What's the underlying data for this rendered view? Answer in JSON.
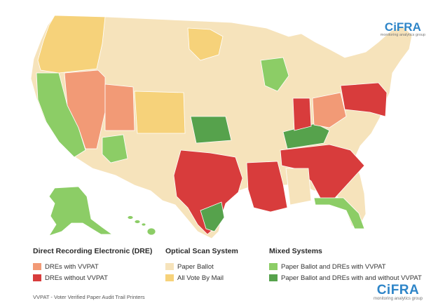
{
  "colors": {
    "dre_with_vvpat": "#f29a76",
    "dre_without_vvpat": "#d83c3c",
    "paper_ballot": "#f6e3bb",
    "vote_by_mail": "#f6d27a",
    "mixed_with_vvpat": "#8ccd66",
    "mixed_with_and_without": "#56a24c",
    "border": "#ffffff"
  },
  "legend": {
    "dre": {
      "title": "Direct Recording Electronic (DRE)",
      "items": [
        {
          "label": "DREs with VVPAT",
          "color_key": "dre_with_vvpat"
        },
        {
          "label": "DREs without VVPAT",
          "color_key": "dre_without_vvpat"
        }
      ]
    },
    "optical": {
      "title": "Optical Scan System",
      "items": [
        {
          "label": "Paper Ballot",
          "color_key": "paper_ballot"
        },
        {
          "label": "All Vote By Mail",
          "color_key": "vote_by_mail"
        }
      ]
    },
    "mixed": {
      "title": "Mixed Systems",
      "items": [
        {
          "label": "Paper Ballot and DREs with VVPAT",
          "color_key": "mixed_with_vvpat"
        },
        {
          "label": "Paper Ballot and DREs with and without VVPAT",
          "color_key": "mixed_with_and_without"
        }
      ]
    }
  },
  "footnote": "VVPAT - Voter Verified Paper Audit Trail Printers",
  "logo": {
    "name": "CiFRA",
    "tagline": "monitoring analytics group"
  }
}
